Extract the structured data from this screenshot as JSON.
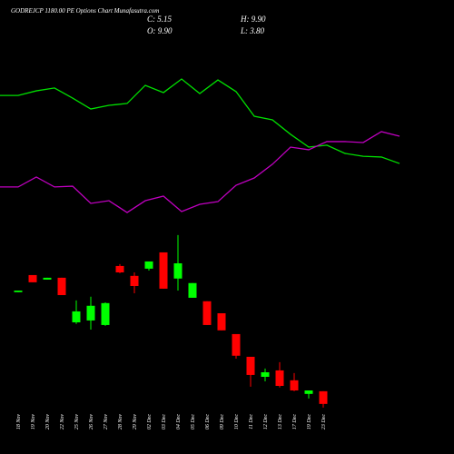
{
  "chart_data": [
    {
      "type": "candlestick",
      "title": "GODREJCP 1180.00 PE Options Chart Munafasutra.com",
      "annotations": [
        "C: 5.15",
        "O: 9.90",
        "H: 9.90",
        "L: 3.80"
      ],
      "categories": [
        "18 Nov",
        "19 Nov",
        "20 Nov",
        "22 Nov",
        "25 Nov",
        "26 Nov",
        "27 Nov",
        "28 Nov",
        "29 Nov",
        "02 Dec",
        "03 Dec",
        "04 Dec",
        "05 Dec",
        "06 Dec",
        "09 Dec",
        "10 Dec",
        "11 Dec",
        "12 Dec",
        "13 Dec",
        "17 Dec",
        "19 Dec",
        "23 Dec"
      ],
      "open": [
        47.0,
        53.4,
        51.7,
        52.4,
        35.7,
        36.4,
        34.7,
        56.8,
        53.1,
        55.8,
        61.9,
        52.1,
        44.9,
        43.6,
        39.1,
        31.3,
        22.8,
        15.3,
        17.7,
        14.0,
        8.9,
        9.9
      ],
      "high": [
        47.6,
        53.4,
        52.4,
        52.4,
        43.9,
        45.3,
        43.2,
        57.5,
        54.4,
        58.5,
        61.9,
        68.4,
        50.4,
        43.6,
        39.1,
        31.3,
        22.8,
        18.4,
        20.8,
        16.7,
        10.2,
        9.9
      ],
      "low": [
        47.0,
        50.7,
        51.7,
        45.9,
        35.1,
        33.0,
        34.4,
        54.1,
        46.6,
        55.1,
        48.3,
        47.6,
        44.9,
        34.7,
        32.7,
        22.1,
        11.6,
        13.6,
        11.3,
        9.9,
        7.2,
        3.8
      ],
      "close": [
        47.6,
        50.7,
        52.4,
        45.9,
        39.8,
        41.9,
        42.9,
        54.4,
        49.3,
        58.5,
        48.3,
        57.8,
        50.4,
        34.7,
        32.7,
        23.2,
        16.0,
        17.0,
        11.9,
        10.2,
        10.2,
        5.15
      ],
      "up_color": "#00ff00",
      "down_color": "#ff0000",
      "ylim": [
        0,
        71.4
      ]
    },
    {
      "type": "line",
      "series": [
        {
          "color": "#00e000",
          "values": [
            69.0,
            69.0,
            71.4,
            72.9,
            67.6,
            61.9,
            63.8,
            64.8,
            74.3,
            70.5,
            77.6,
            70.0,
            77.1,
            71.0,
            58.1,
            56.2,
            48.6,
            41.9,
            42.9,
            38.6,
            37.1,
            36.7,
            33.3
          ]
        },
        {
          "color": "#c000c0",
          "values": [
            21.0,
            21.0,
            26.2,
            21.0,
            21.4,
            12.4,
            13.8,
            7.6,
            13.8,
            16.2,
            8.1,
            11.9,
            13.3,
            21.9,
            25.7,
            32.9,
            41.9,
            40.5,
            44.8,
            44.8,
            44.3,
            50.0,
            47.6
          ]
        }
      ],
      "ylim": [
        0,
        100
      ]
    }
  ]
}
